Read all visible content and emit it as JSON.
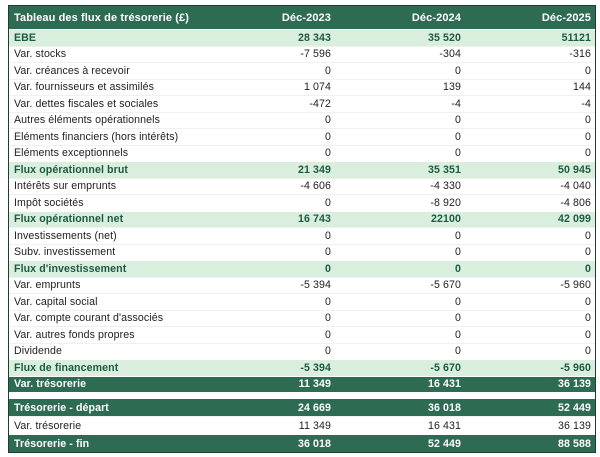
{
  "theme": {
    "dark_green": "#2e6b53",
    "light_green": "#d9eedd",
    "subtotal_text": "#1b5b45",
    "border_color": "#1d3d31"
  },
  "table": {
    "title": "Tableau des flux de trésorerie (£)",
    "columns": [
      "Déc-2023",
      "Déc-2024",
      "Déc-2025"
    ],
    "rows": [
      {
        "label": "EBE",
        "values": [
          "28 343",
          "35 520",
          "51121"
        ],
        "style": "subtotal"
      },
      {
        "label": "Var. stocks",
        "values": [
          "-7 596",
          "-304",
          "-316"
        ],
        "style": "normal"
      },
      {
        "label": "Var. créances à recevoir",
        "values": [
          "0",
          "0",
          "0"
        ],
        "style": "normal"
      },
      {
        "label": "Var. fournisseurs et assimilés",
        "values": [
          "1 074",
          "139",
          "144"
        ],
        "style": "normal"
      },
      {
        "label": "Var. dettes fiscales et sociales",
        "values": [
          "-472",
          "-4",
          "-4"
        ],
        "style": "normal"
      },
      {
        "label": "Autres éléments opérationnels",
        "values": [
          "0",
          "0",
          "0"
        ],
        "style": "normal"
      },
      {
        "label": "Eléments financiers (hors intérêts)",
        "values": [
          "0",
          "0",
          "0"
        ],
        "style": "normal"
      },
      {
        "label": "Eléments exceptionnels",
        "values": [
          "0",
          "0",
          "0"
        ],
        "style": "normal"
      },
      {
        "label": "Flux opérationnel brut",
        "values": [
          "21 349",
          "35 351",
          "50 945"
        ],
        "style": "subtotal"
      },
      {
        "label": "Intérêts sur emprunts",
        "values": [
          "-4 606",
          "-4 330",
          "-4 040"
        ],
        "style": "normal"
      },
      {
        "label": "Impôt sociétés",
        "values": [
          "0",
          "-8 920",
          "-4 806"
        ],
        "style": "normal"
      },
      {
        "label": "Flux opérationnel net",
        "values": [
          "16 743",
          "22100",
          "42 099"
        ],
        "style": "subtotal"
      },
      {
        "label": "Investissements (net)",
        "values": [
          "0",
          "0",
          "0"
        ],
        "style": "normal"
      },
      {
        "label": "Subv. investissement",
        "values": [
          "0",
          "0",
          "0"
        ],
        "style": "normal"
      },
      {
        "label": "Flux d'investissement",
        "values": [
          "0",
          "0",
          "0"
        ],
        "style": "subtotal"
      },
      {
        "label": "Var. emprunts",
        "values": [
          "-5 394",
          "-5 670",
          "-5 960"
        ],
        "style": "normal"
      },
      {
        "label": "Var. capital social",
        "values": [
          "0",
          "0",
          "0"
        ],
        "style": "normal"
      },
      {
        "label": "Var. compte courant d'associés",
        "values": [
          "0",
          "0",
          "0"
        ],
        "style": "normal"
      },
      {
        "label": "Var. autres fonds propres",
        "values": [
          "0",
          "0",
          "0"
        ],
        "style": "normal"
      },
      {
        "label": "Dividende",
        "values": [
          "0",
          "0",
          "0"
        ],
        "style": "normal"
      },
      {
        "label": "Flux de financement",
        "values": [
          "-5 394",
          "-5 670",
          "-5 960"
        ],
        "style": "subtotal"
      },
      {
        "label": "Var. trésorerie",
        "values": [
          "11 349",
          "16 431",
          "36 139"
        ],
        "style": "total"
      },
      {
        "label": "Trésorerie - départ",
        "values": [
          "24 669",
          "36 018",
          "52 449"
        ],
        "style": "total",
        "tall": true,
        "gap_before": true
      },
      {
        "label": "Var. trésorerie",
        "values": [
          "11 349",
          "16 431",
          "36 139"
        ],
        "style": "normal",
        "tall": true
      },
      {
        "label": "Trésorerie - fin",
        "values": [
          "36 018",
          "52 449",
          "88 588"
        ],
        "style": "total",
        "tall": true
      }
    ]
  },
  "chart_data": {
    "type": "table",
    "title": "Tableau des flux de trésorerie (£)",
    "columns": [
      "Déc-2023",
      "Déc-2024",
      "Déc-2025"
    ],
    "rows": [
      {
        "label": "EBE",
        "values": [
          28343,
          35520,
          51121
        ]
      },
      {
        "label": "Var. stocks",
        "values": [
          -7596,
          -304,
          -316
        ]
      },
      {
        "label": "Var. créances à recevoir",
        "values": [
          0,
          0,
          0
        ]
      },
      {
        "label": "Var. fournisseurs et assimilés",
        "values": [
          1074,
          139,
          144
        ]
      },
      {
        "label": "Var. dettes fiscales et sociales",
        "values": [
          -472,
          -4,
          -4
        ]
      },
      {
        "label": "Autres éléments opérationnels",
        "values": [
          0,
          0,
          0
        ]
      },
      {
        "label": "Eléments financiers (hors intérêts)",
        "values": [
          0,
          0,
          0
        ]
      },
      {
        "label": "Eléments exceptionnels",
        "values": [
          0,
          0,
          0
        ]
      },
      {
        "label": "Flux opérationnel brut",
        "values": [
          21349,
          35351,
          50945
        ]
      },
      {
        "label": "Intérêts sur emprunts",
        "values": [
          -4606,
          -4330,
          -4040
        ]
      },
      {
        "label": "Impôt sociétés",
        "values": [
          0,
          -8920,
          -4806
        ]
      },
      {
        "label": "Flux opérationnel net",
        "values": [
          16743,
          22100,
          42099
        ]
      },
      {
        "label": "Investissements (net)",
        "values": [
          0,
          0,
          0
        ]
      },
      {
        "label": "Subv. investissement",
        "values": [
          0,
          0,
          0
        ]
      },
      {
        "label": "Flux d'investissement",
        "values": [
          0,
          0,
          0
        ]
      },
      {
        "label": "Var. emprunts",
        "values": [
          -5394,
          -5670,
          -5960
        ]
      },
      {
        "label": "Var. capital social",
        "values": [
          0,
          0,
          0
        ]
      },
      {
        "label": "Var. compte courant d'associés",
        "values": [
          0,
          0,
          0
        ]
      },
      {
        "label": "Var. autres fonds propres",
        "values": [
          0,
          0,
          0
        ]
      },
      {
        "label": "Dividende",
        "values": [
          0,
          0,
          0
        ]
      },
      {
        "label": "Flux de financement",
        "values": [
          -5394,
          -5670,
          -5960
        ]
      },
      {
        "label": "Var. trésorerie",
        "values": [
          11349,
          16431,
          36139
        ]
      },
      {
        "label": "Trésorerie - départ",
        "values": [
          24669,
          36018,
          52449
        ]
      },
      {
        "label": "Var. trésorerie",
        "values": [
          11349,
          16431,
          36139
        ]
      },
      {
        "label": "Trésorerie - fin",
        "values": [
          36018,
          52449,
          88588
        ]
      }
    ]
  }
}
